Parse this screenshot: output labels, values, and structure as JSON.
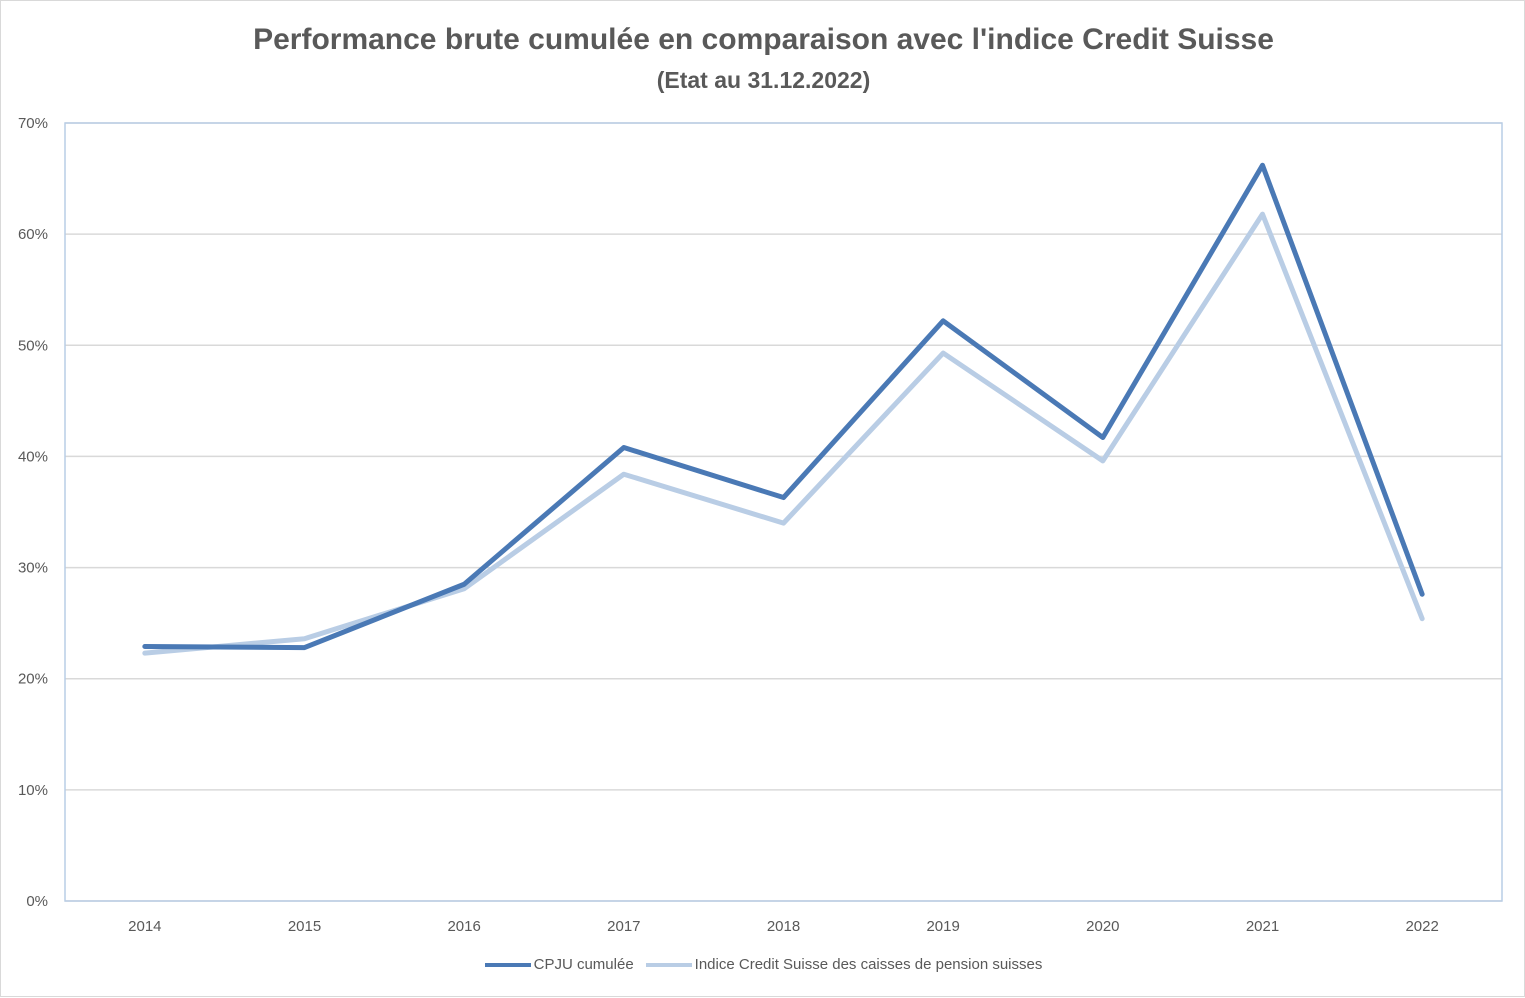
{
  "chart_data": {
    "type": "line",
    "title": "Performance brute cumulée en comparaison avec l'indice Credit Suisse",
    "subtitle": "(Etat au 31.12.2022)",
    "xlabel": "",
    "ylabel": "",
    "categories": [
      "2014",
      "2015",
      "2016",
      "2017",
      "2018",
      "2019",
      "2020",
      "2021",
      "2022"
    ],
    "ylim": [
      0,
      70
    ],
    "yticks": [
      0,
      10,
      20,
      30,
      40,
      50,
      60,
      70
    ],
    "ytick_labels": [
      "0%",
      "10%",
      "20%",
      "30%",
      "40%",
      "50%",
      "60%",
      "70%"
    ],
    "grid": true,
    "legend_position": "bottom",
    "series": [
      {
        "name": "CPJU cumulée",
        "color": "#4a79b5",
        "values": [
          22.9,
          22.8,
          28.5,
          40.8,
          36.3,
          52.2,
          41.7,
          66.2,
          27.6
        ]
      },
      {
        "name": "Indice Credit Suisse des caisses de pension suisses",
        "color": "#b9cde5",
        "values": [
          22.3,
          23.6,
          28.1,
          38.4,
          34.0,
          49.3,
          39.6,
          61.8,
          25.4
        ]
      }
    ]
  }
}
